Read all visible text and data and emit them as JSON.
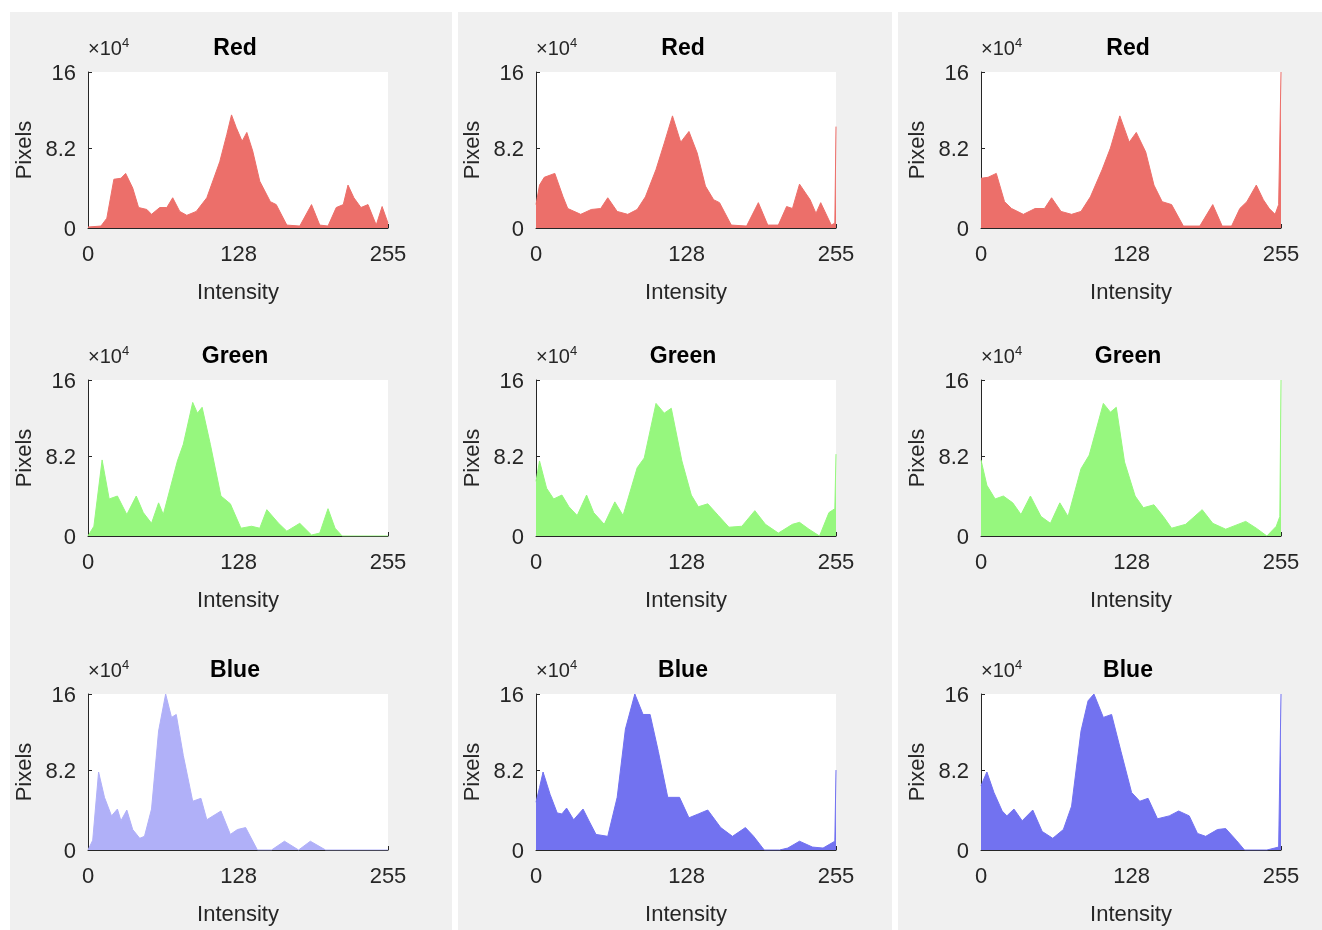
{
  "chart_data": [
    {
      "type": "area",
      "title": "Red",
      "xlabel": "Intensity",
      "ylabel": "Pixels",
      "annotations": [
        "×10$^{4}$"
      ],
      "color": "#ec6f6a",
      "xlim": [
        0,
        255
      ],
      "xticks": [
        0,
        128,
        255
      ],
      "ylim": [
        0,
        16
      ],
      "yticks": [
        0,
        8.2,
        16
      ],
      "x": [
        0,
        11,
        16,
        22,
        28,
        32,
        38,
        43,
        50,
        54,
        61,
        67,
        72,
        78,
        84,
        92,
        101,
        112,
        118,
        122,
        126,
        131,
        135,
        140,
        146,
        155,
        160,
        169,
        180,
        190,
        197,
        204,
        211,
        217,
        221,
        226,
        232,
        238,
        245,
        250,
        255
      ],
      "values": [
        0.1,
        0.2,
        1.0,
        5.0,
        5.1,
        5.6,
        4.1,
        2.1,
        1.9,
        1.4,
        2.1,
        2.1,
        3.1,
        1.7,
        1.3,
        1.7,
        3.1,
        6.8,
        9.6,
        11.6,
        10.3,
        8.9,
        9.8,
        7.9,
        4.8,
        2.7,
        2.4,
        0.3,
        0.2,
        2.4,
        0.3,
        0.2,
        2.1,
        2.4,
        4.4,
        3.1,
        2.1,
        2.4,
        0.3,
        2.2,
        0.5
      ]
    },
    {
      "type": "area",
      "title": "Red",
      "xlabel": "Intensity",
      "ylabel": "Pixels",
      "annotations": [
        "×10$^{4}$"
      ],
      "color": "#ec6f6a",
      "xlim": [
        0,
        255
      ],
      "xticks": [
        0,
        128,
        255
      ],
      "ylim": [
        0,
        16
      ],
      "yticks": [
        0,
        8.2,
        16
      ],
      "x": [
        0,
        3,
        7,
        16,
        23,
        27,
        38,
        47,
        55,
        61,
        69,
        78,
        86,
        93,
        102,
        109,
        116,
        123,
        130,
        137,
        144,
        151,
        156,
        166,
        179,
        189,
        197,
        206,
        213,
        218,
        224,
        233,
        238,
        242,
        251,
        254,
        255
      ],
      "values": [
        2.4,
        4.4,
        5.2,
        5.6,
        3.2,
        2.0,
        1.4,
        1.9,
        2.0,
        3.1,
        1.7,
        1.4,
        1.9,
        3.2,
        6.0,
        8.7,
        11.5,
        8.8,
        9.9,
        7.7,
        4.3,
        2.9,
        2.6,
        0.3,
        0.2,
        2.6,
        0.3,
        0.3,
        2.2,
        2.0,
        4.5,
        2.9,
        1.5,
        2.6,
        0.3,
        0.5,
        10.4
      ]
    },
    {
      "type": "area",
      "title": "Red",
      "xlabel": "Intensity",
      "ylabel": "Pixels",
      "annotations": [
        "×10$^{4}$"
      ],
      "color": "#ec6f6a",
      "xlim": [
        0,
        255
      ],
      "xticks": [
        0,
        128,
        255
      ],
      "ylim": [
        0,
        16
      ],
      "yticks": [
        0,
        8.2,
        16
      ],
      "x": [
        0,
        6,
        13,
        20,
        26,
        36,
        46,
        54,
        60,
        68,
        77,
        85,
        93,
        103,
        110,
        118,
        126,
        132,
        140,
        147,
        154,
        162,
        172,
        186,
        197,
        205,
        213,
        220,
        226,
        234,
        240,
        245,
        250,
        253,
        255
      ],
      "values": [
        5.1,
        5.2,
        5.6,
        2.7,
        2.0,
        1.4,
        2.0,
        2.0,
        3.1,
        1.7,
        1.4,
        1.7,
        3.2,
        6.0,
        8.2,
        11.5,
        8.8,
        9.8,
        7.8,
        4.4,
        2.7,
        2.4,
        0.2,
        0.2,
        2.4,
        0.2,
        0.2,
        2.0,
        2.7,
        4.4,
        2.9,
        2.0,
        1.4,
        2.4,
        16
      ]
    },
    {
      "type": "area",
      "title": "Green",
      "xlabel": "Intensity",
      "ylabel": "Pixels",
      "annotations": [
        "×10$^{4}$"
      ],
      "color": "#96f77e",
      "xlim": [
        0,
        255
      ],
      "xticks": [
        0,
        128,
        255
      ],
      "ylim": [
        0,
        16
      ],
      "yticks": [
        0,
        8.2,
        16
      ],
      "x": [
        0,
        5,
        12,
        18,
        25,
        33,
        41,
        47,
        54,
        60,
        64,
        76,
        81,
        89,
        93,
        97,
        104,
        113,
        121,
        130,
        139,
        146,
        152,
        162,
        169,
        180,
        190,
        197,
        204,
        210,
        216,
        255
      ],
      "values": [
        0,
        1.0,
        7.8,
        3.8,
        4.1,
        2.2,
        4.1,
        2.4,
        1.3,
        3.4,
        2.2,
        7.7,
        9.4,
        13.7,
        12.6,
        13.2,
        9.4,
        4.1,
        3.3,
        0.8,
        1.0,
        0.8,
        2.7,
        1.3,
        0.5,
        1.3,
        0.1,
        0.3,
        2.8,
        0.8,
        0,
        0
      ]
    },
    {
      "type": "area",
      "title": "Green",
      "xlabel": "Intensity",
      "ylabel": "Pixels",
      "annotations": [
        "×10$^{4}$"
      ],
      "color": "#96f77e",
      "xlim": [
        0,
        255
      ],
      "xticks": [
        0,
        128,
        255
      ],
      "ylim": [
        0,
        16
      ],
      "yticks": [
        0,
        8.2,
        16
      ],
      "x": [
        0,
        3,
        9,
        15,
        22,
        28,
        35,
        43,
        49,
        58,
        67,
        74,
        86,
        92,
        102,
        109,
        115,
        124,
        132,
        138,
        146,
        155,
        164,
        175,
        186,
        195,
        206,
        218,
        224,
        232,
        241,
        249,
        254,
        255
      ],
      "values": [
        5.6,
        7.7,
        4.9,
        3.8,
        4.2,
        3.0,
        2.1,
        4.2,
        2.4,
        1.2,
        3.5,
        2.1,
        7.0,
        8.0,
        13.6,
        12.6,
        13.1,
        7.7,
        4.2,
        3.0,
        3.3,
        2.1,
        0.9,
        1.0,
        2.6,
        1.2,
        0.3,
        1.2,
        1.4,
        0.7,
        0,
        2.4,
        2.8,
        8.4
      ]
    },
    {
      "type": "area",
      "title": "Green",
      "xlabel": "Intensity",
      "ylabel": "Pixels",
      "annotations": [
        "×10$^{4}$"
      ],
      "color": "#96f77e",
      "xlim": [
        0,
        255
      ],
      "xticks": [
        0,
        128,
        255
      ],
      "ylim": [
        0,
        16
      ],
      "yticks": [
        0,
        8.2,
        16
      ],
      "x": [
        0,
        5,
        12,
        19,
        27,
        34,
        42,
        51,
        59,
        67,
        74,
        85,
        92,
        104,
        110,
        115,
        122,
        131,
        138,
        147,
        155,
        162,
        174,
        188,
        197,
        208,
        225,
        234,
        243,
        251,
        254,
        255
      ],
      "values": [
        7.8,
        5.2,
        3.8,
        4.1,
        3.4,
        2.2,
        4.1,
        2.0,
        1.3,
        3.4,
        2.0,
        6.9,
        8.3,
        13.6,
        12.7,
        13.2,
        7.6,
        4.1,
        2.9,
        3.2,
        2.0,
        0.8,
        1.2,
        2.7,
        1.3,
        0.7,
        1.5,
        0.8,
        0,
        1.0,
        2.0,
        16
      ]
    },
    {
      "type": "area",
      "title": "Blue",
      "xlabel": "Intensity",
      "ylabel": "Pixels",
      "annotations": [
        "×10$^{4}$"
      ],
      "color": "#b0b0f8",
      "xlim": [
        0,
        255
      ],
      "xticks": [
        0,
        128,
        255
      ],
      "ylim": [
        0,
        16
      ],
      "yticks": [
        0,
        8.2,
        16
      ],
      "x": [
        0,
        4,
        9,
        14,
        20,
        25,
        28,
        33,
        38,
        44,
        48,
        54,
        60,
        66,
        71,
        75,
        81,
        89,
        96,
        101,
        113,
        121,
        127,
        134,
        144,
        156,
        167,
        179,
        189,
        202,
        255
      ],
      "values": [
        0,
        1.0,
        8.0,
        5.4,
        3.5,
        4.2,
        3.0,
        4.1,
        2.1,
        1.2,
        1.4,
        4.2,
        12.2,
        16,
        13.6,
        13.9,
        9.7,
        5.0,
        5.3,
        3.1,
        4.0,
        1.6,
        2.1,
        2.3,
        0,
        0,
        0.9,
        0,
        0.9,
        0,
        0
      ]
    },
    {
      "type": "area",
      "title": "Blue",
      "xlabel": "Intensity",
      "ylabel": "Pixels",
      "annotations": [
        "×10$^{4}$"
      ],
      "color": "#7272f0",
      "xlim": [
        0,
        255
      ],
      "xticks": [
        0,
        128,
        255
      ],
      "ylim": [
        0,
        16
      ],
      "yticks": [
        0,
        8.2,
        16
      ],
      "x": [
        0,
        3,
        6,
        12,
        18,
        22,
        26,
        32,
        40,
        45,
        51,
        61,
        69,
        76,
        84,
        91,
        97,
        104,
        112,
        122,
        130,
        138,
        146,
        157,
        167,
        178,
        185,
        194,
        207,
        214,
        224,
        235,
        244,
        254,
        255
      ],
      "values": [
        4.9,
        6.4,
        8.0,
        5.7,
        3.8,
        3.7,
        4.3,
        3.1,
        4.2,
        3.0,
        1.6,
        1.4,
        5.4,
        12.4,
        16,
        13.9,
        13.9,
        10.1,
        5.4,
        5.4,
        3.3,
        3.7,
        4.1,
        2.3,
        1.4,
        2.3,
        1.4,
        0,
        0,
        0.2,
        0.9,
        0.3,
        0.2,
        0.9,
        8.2
      ]
    },
    {
      "type": "area",
      "title": "Blue",
      "xlabel": "Intensity",
      "ylabel": "Pixels",
      "annotations": [
        "×10$^{4}$"
      ],
      "color": "#7272f0",
      "xlim": [
        0,
        255
      ],
      "xticks": [
        0,
        128,
        255
      ],
      "ylim": [
        0,
        16
      ],
      "yticks": [
        0,
        8.2,
        16
      ],
      "x": [
        0,
        5,
        11,
        18,
        22,
        28,
        35,
        44,
        52,
        61,
        70,
        77,
        85,
        91,
        96,
        104,
        111,
        119,
        128,
        135,
        142,
        150,
        160,
        168,
        177,
        184,
        191,
        201,
        208,
        217,
        224,
        243,
        253,
        255
      ],
      "values": [
        6.6,
        8.0,
        5.9,
        4.0,
        3.5,
        4.2,
        3.0,
        4.1,
        1.9,
        1.2,
        2.1,
        4.5,
        12.2,
        15.3,
        16,
        13.6,
        13.9,
        10.1,
        5.9,
        5.0,
        5.3,
        3.2,
        3.5,
        4.0,
        3.5,
        1.7,
        1.4,
        2.1,
        2.2,
        1.0,
        0,
        0,
        0.3,
        16
      ]
    }
  ]
}
